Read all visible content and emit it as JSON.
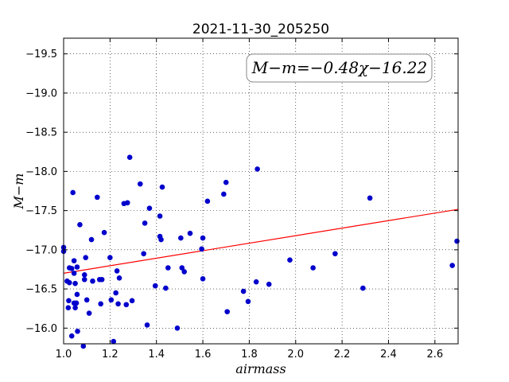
{
  "chart_data": {
    "type": "scatter",
    "title": "2021-11-30_205250",
    "xlabel": "airmass",
    "ylabel": "M−m",
    "xlim": [
      1.0,
      2.7
    ],
    "ylim": [
      -19.7,
      -15.8
    ],
    "y_inverted": true,
    "grid": true,
    "x_ticks": [
      1.0,
      1.2,
      1.4,
      1.6,
      1.8,
      2.0,
      2.2,
      2.4,
      2.6
    ],
    "x_tick_labels": [
      "1.0",
      "1.2",
      "1.4",
      "1.6",
      "1.8",
      "2.0",
      "2.2",
      "2.4",
      "2.6"
    ],
    "y_ticks": [
      -16.0,
      -16.5,
      -17.0,
      -17.5,
      -18.0,
      -18.5,
      -19.0,
      -19.5
    ],
    "y_tick_labels": [
      "−16.0",
      "−16.5",
      "−17.0",
      "−17.5",
      "−18.0",
      "−18.5",
      "−19.0",
      "−19.5"
    ],
    "annotation": "M−m=−0.48χ−16.22",
    "fit": {
      "slope": -0.48,
      "intercept": -16.22,
      "color": "#ff0000"
    },
    "marker_color": "#0000cc",
    "points": [
      [
        1.0,
        -16.98
      ],
      [
        1.0,
        -17.03
      ],
      [
        1.015,
        -16.6
      ],
      [
        1.02,
        -16.26
      ],
      [
        1.022,
        -16.35
      ],
      [
        1.025,
        -16.58
      ],
      [
        1.025,
        -16.77
      ],
      [
        1.035,
        -16.76
      ],
      [
        1.035,
        -15.9
      ],
      [
        1.04,
        -17.73
      ],
      [
        1.045,
        -16.32
      ],
      [
        1.045,
        -16.86
      ],
      [
        1.045,
        -16.7
      ],
      [
        1.05,
        -16.26
      ],
      [
        1.05,
        -16.57
      ],
      [
        1.055,
        -16.32
      ],
      [
        1.058,
        -16.78
      ],
      [
        1.058,
        -16.43
      ],
      [
        1.06,
        -15.96
      ],
      [
        1.07,
        -17.32
      ],
      [
        1.085,
        -15.77
      ],
      [
        1.09,
        -16.62
      ],
      [
        1.09,
        -16.68
      ],
      [
        1.095,
        -16.9
      ],
      [
        1.1,
        -16.36
      ],
      [
        1.11,
        -16.19
      ],
      [
        1.12,
        -17.13
      ],
      [
        1.125,
        -16.6
      ],
      [
        1.145,
        -17.67
      ],
      [
        1.155,
        -16.62
      ],
      [
        1.16,
        -16.31
      ],
      [
        1.165,
        -16.62
      ],
      [
        1.175,
        -17.22
      ],
      [
        1.2,
        -16.9
      ],
      [
        1.205,
        -16.36
      ],
      [
        1.215,
        -15.83
      ],
      [
        1.225,
        -16.45
      ],
      [
        1.23,
        -16.73
      ],
      [
        1.235,
        -16.31
      ],
      [
        1.24,
        -16.64
      ],
      [
        1.26,
        -17.59
      ],
      [
        1.27,
        -16.3
      ],
      [
        1.275,
        -17.6
      ],
      [
        1.285,
        -18.18
      ],
      [
        1.295,
        -16.35
      ],
      [
        1.33,
        -17.84
      ],
      [
        1.345,
        -16.95
      ],
      [
        1.35,
        -17.34
      ],
      [
        1.36,
        -16.04
      ],
      [
        1.37,
        -17.53
      ],
      [
        1.395,
        -16.54
      ],
      [
        1.415,
        -17.43
      ],
      [
        1.415,
        -17.17
      ],
      [
        1.42,
        -17.13
      ],
      [
        1.425,
        -17.8
      ],
      [
        1.44,
        -16.51
      ],
      [
        1.45,
        -16.77
      ],
      [
        1.49,
        -16.0
      ],
      [
        1.505,
        -17.15
      ],
      [
        1.51,
        -16.77
      ],
      [
        1.52,
        -16.72
      ],
      [
        1.545,
        -17.21
      ],
      [
        1.595,
        -17.01
      ],
      [
        1.6,
        -17.15
      ],
      [
        1.6,
        -16.63
      ],
      [
        1.62,
        -17.62
      ],
      [
        1.69,
        -17.71
      ],
      [
        1.7,
        -17.86
      ],
      [
        1.705,
        -16.21
      ],
      [
        1.775,
        -16.47
      ],
      [
        1.795,
        -16.34
      ],
      [
        1.83,
        -16.59
      ],
      [
        1.835,
        -18.03
      ],
      [
        1.885,
        -16.56
      ],
      [
        1.975,
        -16.87
      ],
      [
        2.075,
        -16.77
      ],
      [
        2.17,
        -16.95
      ],
      [
        2.29,
        -16.51
      ],
      [
        2.32,
        -17.66
      ],
      [
        2.675,
        -16.8
      ],
      [
        2.695,
        -17.11
      ]
    ]
  }
}
